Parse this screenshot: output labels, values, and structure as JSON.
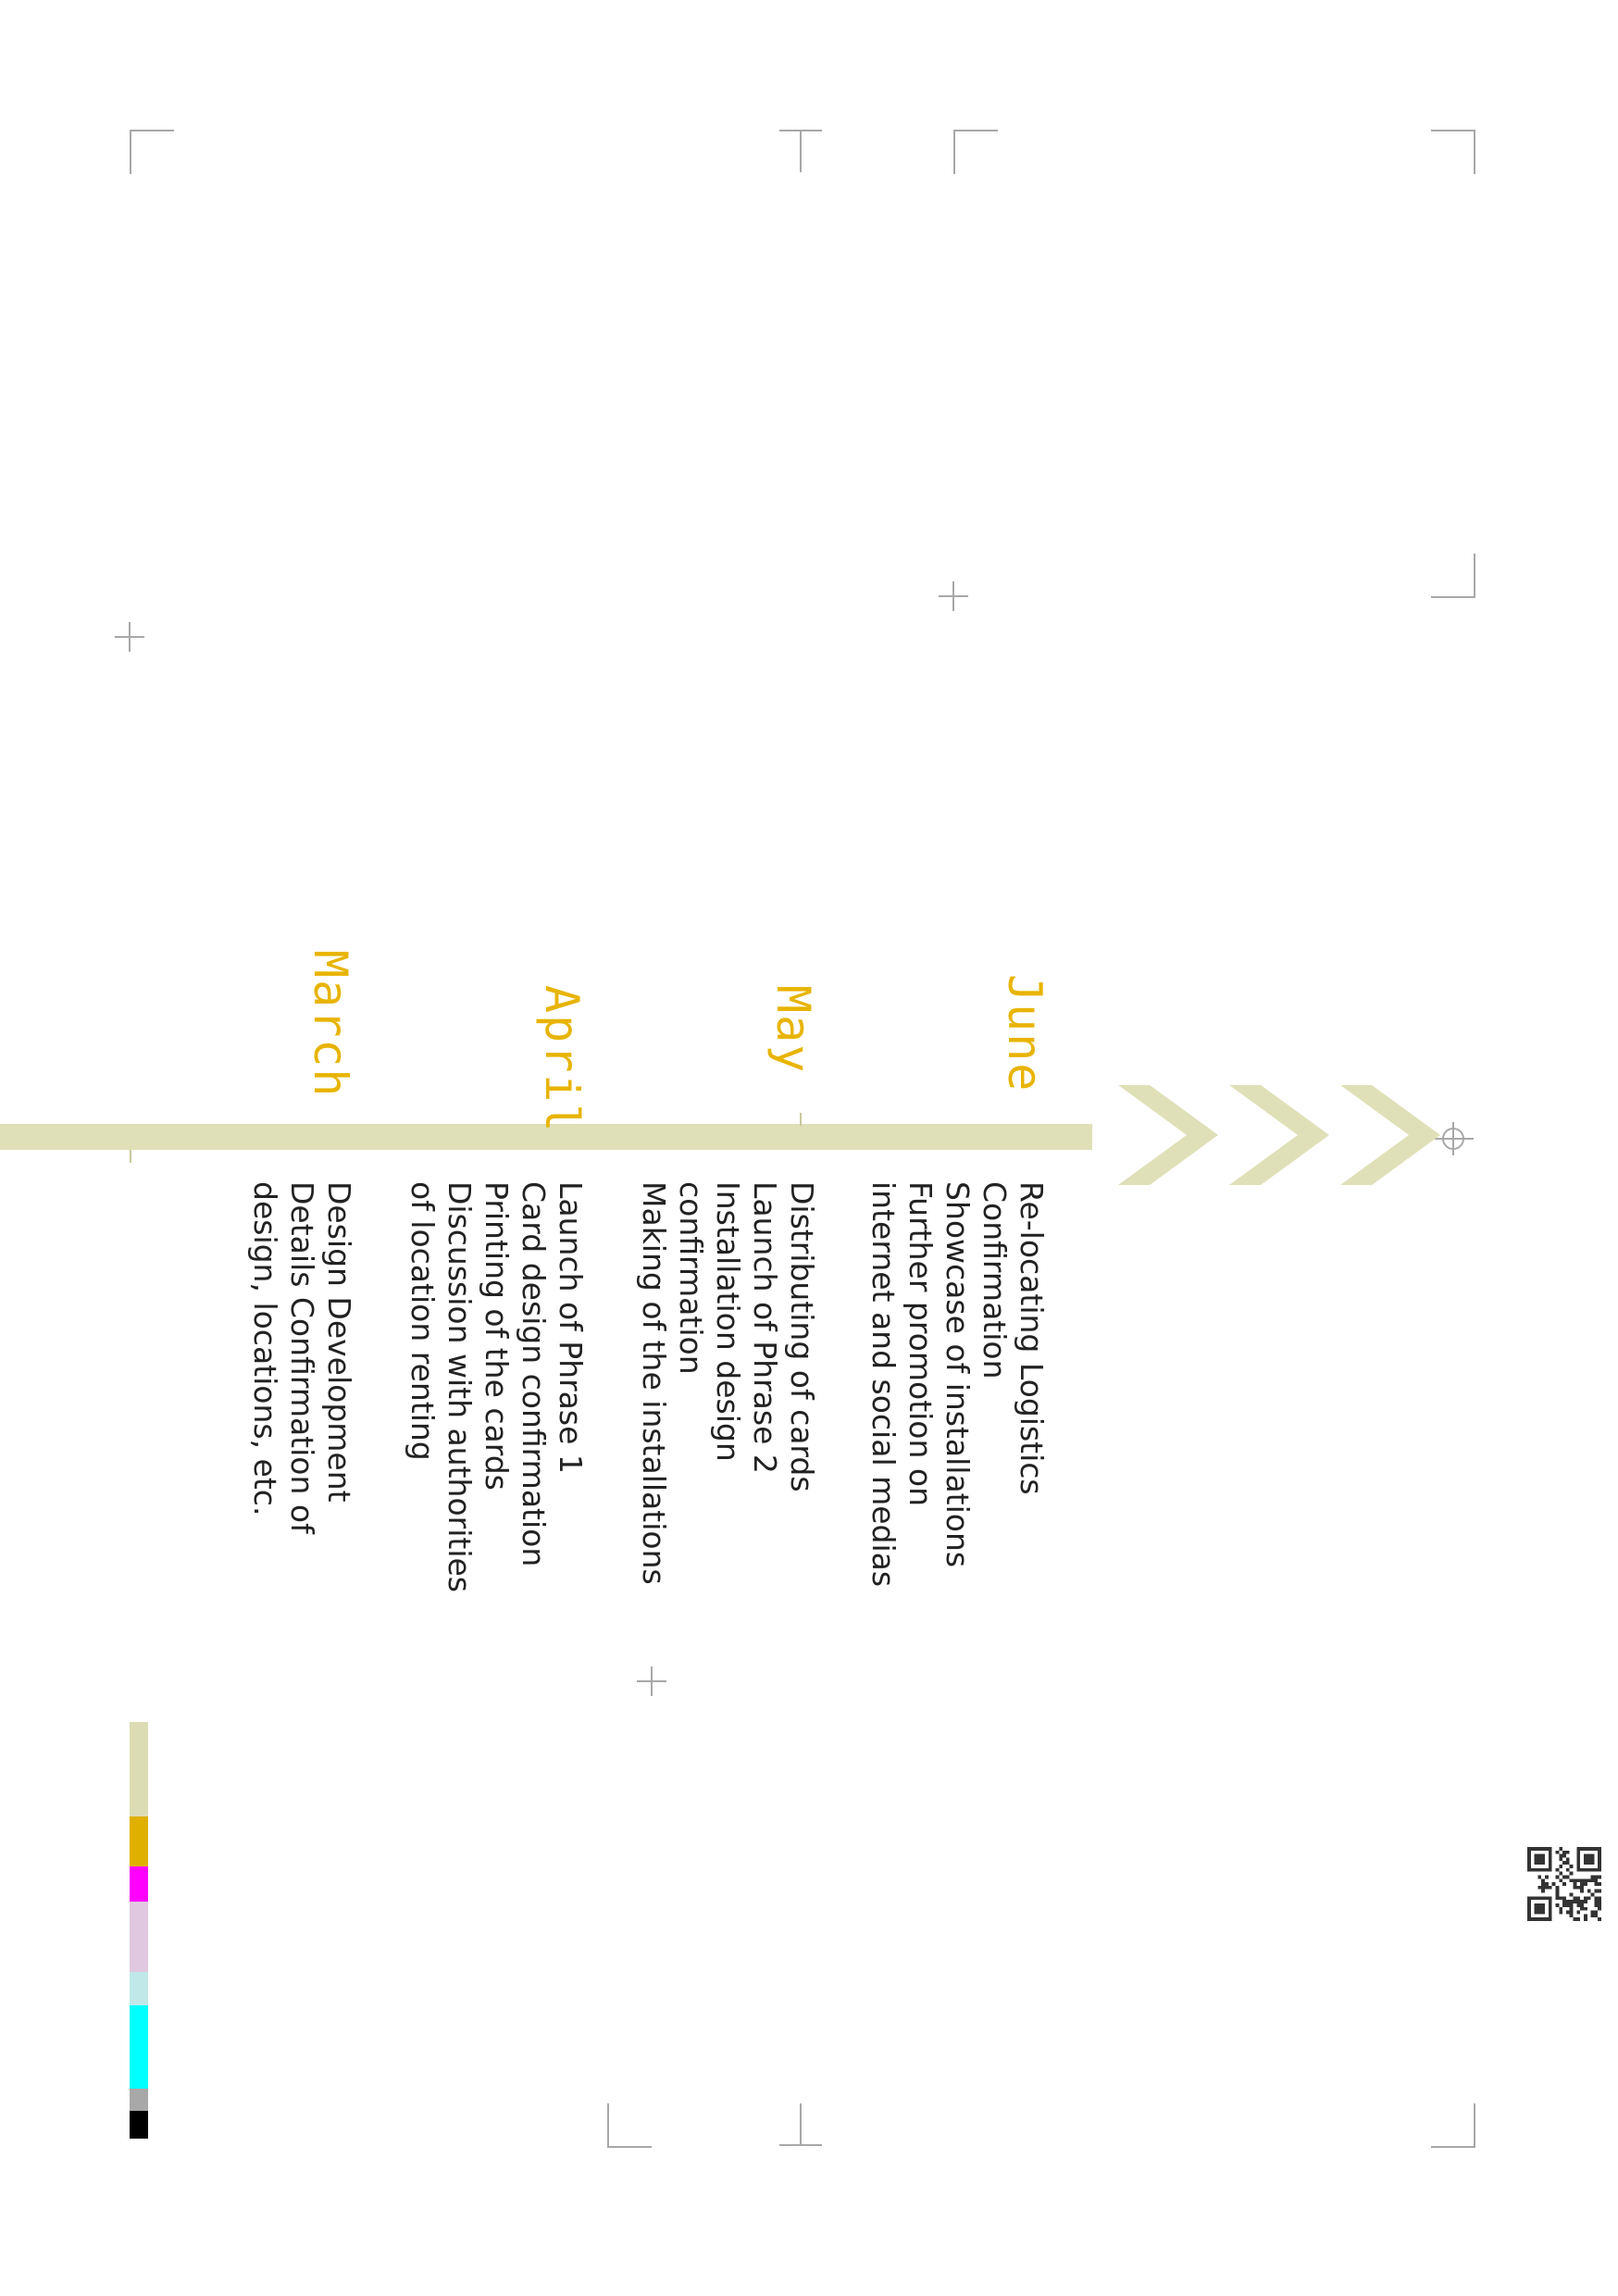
{
  "timeline": [
    {
      "month": "June",
      "tasks": [
        "Re-locating Logistics",
        "Confirmation",
        "Showcase of installations",
        "Further promotion on",
        "internet and social medias"
      ]
    },
    {
      "month": "May",
      "tasks": [
        "Distributing of cards",
        "Launch of Phrase 2",
        "Installation design",
        "confirmation",
        "Making of the installations"
      ]
    },
    {
      "month": "April",
      "tasks": [
        "Launch of Phrase 1",
        "Card design confirmation",
        "Printing of the cards",
        "Discussion with authorities",
        "of location renting"
      ]
    },
    {
      "month": "March",
      "tasks": [
        "Design Development",
        "Details Confirmation of",
        "design, locations, etc."
      ]
    }
  ],
  "colors": {
    "accent_month": "#e8b400",
    "timeline_bar": "#e0e0b8",
    "chevron": "#e0e0b8",
    "strip": [
      "#dcdcb4",
      "#e0b000",
      "#ff00ff",
      "#e0c8e0",
      "#c0e8e8",
      "#00ffff",
      "#a8a8a8",
      "#000000"
    ]
  },
  "icons": [
    "chevron-right-icon",
    "qr-code-icon",
    "registration-mark-icon"
  ]
}
